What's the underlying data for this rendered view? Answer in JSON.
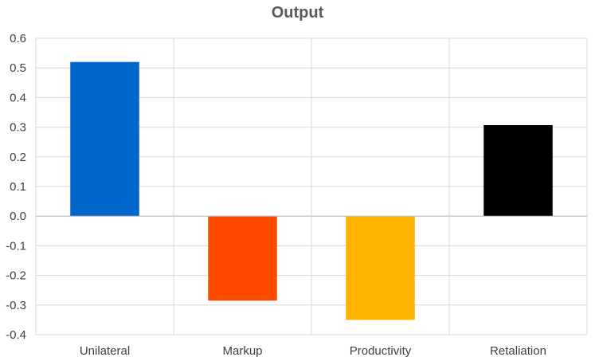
{
  "chart_data": {
    "type": "bar",
    "title": "Output",
    "xlabel": "",
    "ylabel": "",
    "categories": [
      "Unilateral",
      "Markup",
      "Productivity",
      "Retaliation"
    ],
    "values": [
      0.52,
      -0.285,
      -0.35,
      0.307
    ],
    "colors": [
      "#0066CC",
      "#FF4B00",
      "#FFB300",
      "#000000"
    ],
    "ylim": [
      -0.4,
      0.6
    ],
    "yticks": [
      0.6,
      0.5,
      0.4,
      0.3,
      0.2,
      0.1,
      0.0,
      -0.1,
      -0.2,
      -0.3,
      -0.4
    ],
    "ytick_labels": [
      "0.6",
      "0.5",
      "0.4",
      "0.3",
      "0.2",
      "0.1",
      "0.0",
      "-0.1",
      "-0.2",
      "-0.3",
      "-0.4"
    ],
    "grid": true,
    "legend": "none"
  }
}
